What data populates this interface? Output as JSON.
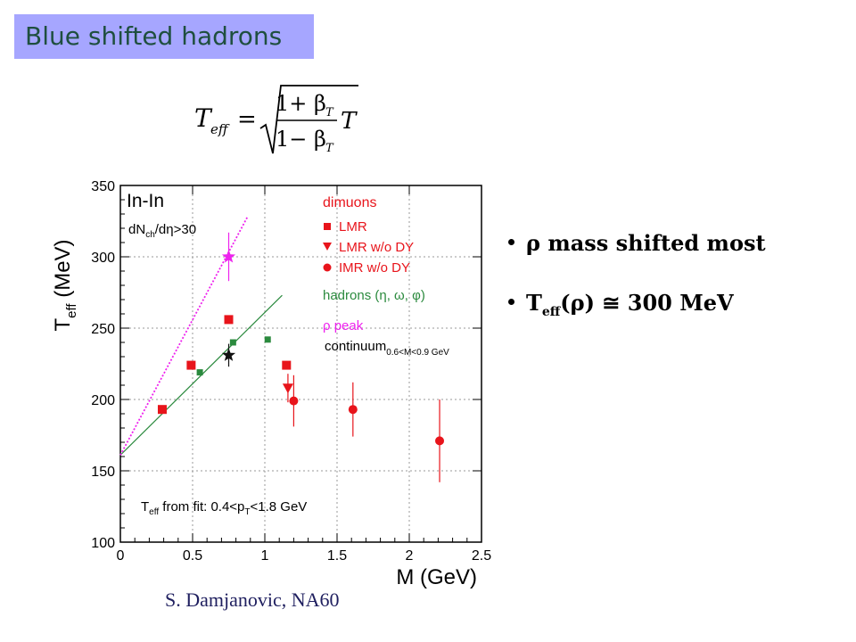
{
  "slide": {
    "title": "Blue shifted hadrons",
    "formula": {
      "lhs": "T",
      "lhs_sub": "eff",
      "equals": "=",
      "num": "1+ β",
      "den": "1− β",
      "beta_sub": "T",
      "trailing": "T"
    },
    "bullets": [
      {
        "symbol": "ρ",
        "text": " mass shifted most"
      },
      {
        "prefix": "T",
        "prefix_sub": "eff",
        "paren": "(ρ)",
        "text": " ≅ 300 MeV"
      }
    ],
    "credit": "S. Damjanovic, NA60"
  },
  "chart_data": {
    "type": "scatter",
    "xlabel": "M (GeV)",
    "ylabel_main": "T",
    "ylabel_sub": "eff",
    "ylabel_unit": " (MeV)",
    "xlim": [
      0,
      2.5
    ],
    "ylim": [
      100,
      350
    ],
    "xticks": [
      0,
      0.5,
      1,
      1.5,
      2,
      2.5
    ],
    "xtick_labels": [
      "0",
      "0.5",
      "1",
      "1.5",
      "2",
      "2.5"
    ],
    "yticks": [
      100,
      150,
      200,
      250,
      300,
      350
    ],
    "ytick_labels": [
      "100",
      "150",
      "200",
      "250",
      "300",
      "350"
    ],
    "grid": true,
    "annotations": {
      "system": "In-In",
      "mult_pre": "dN",
      "mult_sub": "ch",
      "mult_post": "/dη>30",
      "fit_main": "T",
      "fit_sub": "eff",
      "fit_mid": " from fit: 0.4<p",
      "fit_sub2": "T",
      "fit_end": "<1.8 GeV"
    },
    "legend_placement": "top-right",
    "legend": {
      "dimuons": "dimuons",
      "lmr": "LMR",
      "lmr_wodY": "LMR w/o DY",
      "imr_wodY": "IMR w/o DY",
      "hadrons": "hadrons (η, ω, φ)",
      "rho_peak": "ρ peak",
      "continuum": "continuum",
      "continuum_sub": "0.6<M<0.9 GeV"
    },
    "colors": {
      "dimuon": "#e8141b",
      "hadron": "#2b8a3e",
      "rho": "#ee22ee",
      "continuum": "#111111"
    },
    "series": [
      {
        "name": "LMR",
        "marker": "square",
        "color": "#e8141b",
        "points": [
          {
            "x": 0.29,
            "y": 193
          },
          {
            "x": 0.49,
            "y": 224
          },
          {
            "x": 0.75,
            "y": 256
          },
          {
            "x": 1.15,
            "y": 224
          }
        ]
      },
      {
        "name": "LMR w/o DY",
        "marker": "triangle-down",
        "color": "#e8141b",
        "points": [
          {
            "x": 1.16,
            "y": 208,
            "err": 10
          }
        ]
      },
      {
        "name": "IMR w/o DY",
        "marker": "circle",
        "color": "#e8141b",
        "points": [
          {
            "x": 1.2,
            "y": 199,
            "err": 18
          },
          {
            "x": 1.61,
            "y": 193,
            "err": 19
          },
          {
            "x": 2.21,
            "y": 171,
            "err": 29
          }
        ]
      },
      {
        "name": "hadrons (η, ω, φ)",
        "marker": "square-small",
        "color": "#2b8a3e",
        "points": [
          {
            "x": 0.55,
            "y": 219
          },
          {
            "x": 0.78,
            "y": 240
          },
          {
            "x": 1.02,
            "y": 242
          }
        ]
      },
      {
        "name": "ρ peak",
        "marker": "star",
        "color": "#ee22ee",
        "points": [
          {
            "x": 0.75,
            "y": 300,
            "err": 17
          }
        ]
      },
      {
        "name": "continuum",
        "marker": "star",
        "color": "#111111",
        "points": [
          {
            "x": 0.75,
            "y": 231,
            "err": 8
          }
        ]
      }
    ],
    "fit_lines": [
      {
        "color": "#2b8a3e",
        "style": "solid",
        "from": [
          0,
          161
        ],
        "to": [
          1.12,
          273
        ]
      },
      {
        "color": "#ee22ee",
        "style": "dotted",
        "from": [
          0,
          161
        ],
        "to": [
          0.88,
          328
        ]
      }
    ]
  }
}
